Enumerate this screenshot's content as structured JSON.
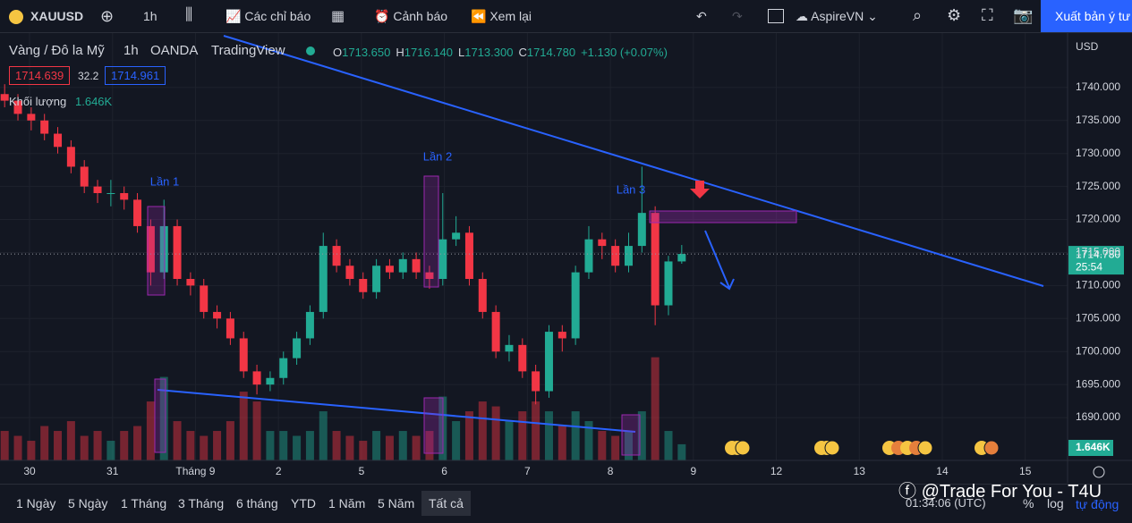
{
  "toolbar": {
    "symbol": "XAUUSD",
    "interval": "1h",
    "indicators": "Các chỉ báo",
    "alerts": "Cảnh báo",
    "replay": "Xem lại",
    "layout": "AspireVN",
    "publish": "Xuất bản ý tư"
  },
  "legend": {
    "name": "Vàng / Đô la Mỹ",
    "interval": "1h",
    "exchange": "OANDA",
    "source": "TradingView",
    "ohlc": [
      {
        "label": "O",
        "value": "1713.650"
      },
      {
        "label": "H",
        "value": "1716.140"
      },
      {
        "label": "L",
        "value": "1713.300"
      },
      {
        "label": "C",
        "value": "1714.780"
      }
    ],
    "change": "+1.130 (+0.07%)",
    "bid": "1714.639",
    "spread": "32.2",
    "ask": "1714.961",
    "volume_name": "Khối lượng",
    "volume_value": "1.646K"
  },
  "chart_data": {
    "type": "candlestick",
    "x": [
      -0.3,
      -0.14,
      0.02,
      0.18,
      0.34,
      0.5,
      0.66,
      0.82,
      0.98,
      1.14,
      1.3,
      1.46,
      1.62,
      1.78,
      1.94,
      2.1,
      2.26,
      2.42,
      2.58,
      2.74,
      2.9,
      3.06,
      3.22,
      3.38,
      3.54,
      3.7,
      3.86,
      4.02,
      4.18,
      4.34,
      4.5,
      4.66,
      4.82,
      4.98,
      5.14,
      5.3,
      5.46,
      5.62,
      5.78,
      5.94,
      6.1,
      6.26,
      6.42,
      6.58,
      6.74,
      6.9,
      7.06,
      7.22,
      7.38,
      7.54,
      7.7,
      7.86
    ],
    "open": [
      1739,
      1738,
      1736,
      1735,
      1733,
      1731,
      1728,
      1725,
      1724,
      1724,
      1723,
      1719,
      1712,
      1719,
      1711,
      1710,
      1706,
      1705,
      1702,
      1697,
      1695,
      1696,
      1699,
      1702,
      1706,
      1716,
      1713,
      1711,
      1709,
      1713,
      1712,
      1714,
      1712,
      1711,
      1717,
      1718,
      1711,
      1706,
      1700,
      1701,
      1697,
      1694,
      1703,
      1702,
      1712,
      1717,
      1716,
      1713,
      1716,
      1721,
      1707,
      1713.65
    ],
    "high": [
      1740.5,
      1739,
      1737,
      1736,
      1734,
      1732,
      1729,
      1726,
      1726,
      1725,
      1724,
      1720,
      1723,
      1720,
      1712,
      1711,
      1707,
      1706,
      1703,
      1698,
      1697,
      1700,
      1703,
      1707,
      1718,
      1717,
      1714,
      1712,
      1714,
      1714,
      1715,
      1715,
      1713,
      1724,
      1720.5,
      1719,
      1712,
      1707,
      1702.5,
      1702,
      1698,
      1704,
      1704,
      1713,
      1719,
      1718,
      1717,
      1718,
      1728,
      1722,
      1714.5,
      1716.14
    ],
    "low": [
      1737,
      1735,
      1733.5,
      1732,
      1730,
      1727,
      1724,
      1722.5,
      1722,
      1721.5,
      1718,
      1710,
      1711,
      1710,
      1708.5,
      1705,
      1703.5,
      1701,
      1696,
      1693.5,
      1694,
      1695,
      1698,
      1701,
      1705,
      1712,
      1710,
      1708,
      1708,
      1711,
      1711,
      1711,
      1709.5,
      1710,
      1716,
      1710,
      1705,
      1699,
      1698.5,
      1696,
      1692,
      1693,
      1700,
      1701,
      1711,
      1714,
      1712,
      1712,
      1715,
      1704,
      1705.5,
      1713.3
    ],
    "close": [
      1738,
      1736,
      1735,
      1733,
      1731,
      1728,
      1725,
      1724,
      1724,
      1723,
      1719,
      1712,
      1719,
      1711,
      1710,
      1706,
      1705,
      1702,
      1697,
      1695,
      1696,
      1699,
      1702,
      1706,
      1716,
      1713,
      1711,
      1709,
      1713,
      1712,
      1714,
      1712,
      1711,
      1717,
      1718,
      1711,
      1706,
      1700,
      1701,
      1697,
      1694,
      1703,
      1702,
      1712,
      1717,
      1716,
      1713,
      1716,
      1721,
      1707,
      1713.65,
      1714.78
    ],
    "volume": [
      3,
      2.5,
      2,
      3.5,
      3,
      4,
      2.5,
      3,
      2,
      3,
      3.5,
      6,
      8.5,
      4,
      3,
      2.5,
      3,
      4,
      7,
      6,
      3,
      3,
      2.5,
      3,
      5,
      3,
      2.5,
      2,
      3,
      2.5,
      3,
      2.5,
      3,
      6.5,
      4,
      5,
      6,
      5.5,
      4,
      5,
      6,
      5,
      3.5,
      5,
      4,
      3,
      2.5,
      3,
      5,
      10.5,
      3,
      1.646
    ],
    "up_color": "#22ab94",
    "down_color": "#f23645",
    "xlim": [
      -0.356,
      12.51
    ],
    "xticks": [
      {
        "value": 0,
        "label": "30"
      },
      {
        "value": 1,
        "label": "31"
      },
      {
        "value": 2,
        "label": "Tháng 9"
      },
      {
        "value": 3,
        "label": "2"
      },
      {
        "value": 4,
        "label": "5"
      },
      {
        "value": 5,
        "label": "6"
      },
      {
        "value": 6,
        "label": "7"
      },
      {
        "value": 7,
        "label": "8"
      },
      {
        "value": 8,
        "label": "9"
      },
      {
        "value": 9,
        "label": "12"
      },
      {
        "value": 10,
        "label": "13"
      },
      {
        "value": 11,
        "label": "14"
      },
      {
        "value": 12,
        "label": "15"
      }
    ],
    "ylim": [
      1683.51,
      1748.24
    ],
    "yticks": [
      {
        "value": 1740,
        "label": "1740.000"
      },
      {
        "value": 1735,
        "label": "1735.000"
      },
      {
        "value": 1730,
        "label": "1730.000"
      },
      {
        "value": 1725,
        "label": "1725.000"
      },
      {
        "value": 1720,
        "label": "1720.000"
      },
      {
        "value": 1715,
        "label": "1715.000"
      },
      {
        "value": 1710,
        "label": "1710.000"
      },
      {
        "value": 1705,
        "label": "1705.000"
      },
      {
        "value": 1700,
        "label": "1700.000"
      },
      {
        "value": 1695,
        "label": "1695.000"
      },
      {
        "value": 1690,
        "label": "1690.000"
      }
    ],
    "volume_lim": [
      0,
      43.5
    ],
    "grid": true,
    "currency": "USD",
    "price_tag": {
      "value": 1714.78,
      "label": "1714.780"
    },
    "countdown": "25:54",
    "volume_tag": "1.646K",
    "annotations": [
      "Lần 1",
      "Lần 2",
      "Lần 3"
    ]
  },
  "footer": {
    "ranges": [
      "1 Ngày",
      "5 Ngày",
      "1 Tháng",
      "3 Tháng",
      "6 tháng",
      "YTD",
      "1 Năm",
      "5 Năm",
      "Tất cả"
    ],
    "clock": "01:34:06 (UTC)",
    "percent": "%",
    "log": "log",
    "auto": "tự động"
  },
  "watermark": "@Trade For You - T4U"
}
